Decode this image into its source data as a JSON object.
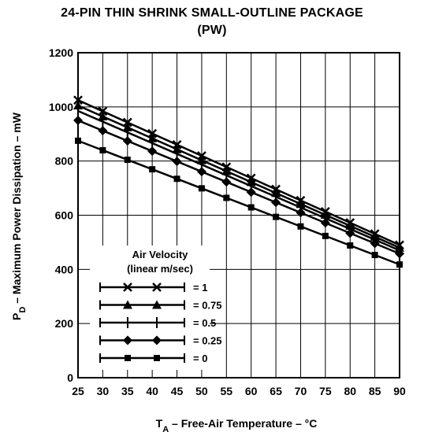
{
  "title_line1": "24-PIN THIN SHRINK SMALL-OUTLINE PACKAGE",
  "title_line2": "(PW)",
  "chart_data": {
    "type": "line",
    "title": "24-PIN THIN SHRINK SMALL-OUTLINE PACKAGE (PW)",
    "xlabel": "TA – Free-Air Temperature – °C",
    "xlabel_main": "T",
    "xlabel_sub": "A",
    "xlabel_rest": " – Free-Air Temperature – °C",
    "ylabel": "PD – Maximum Power Dissipation – mW",
    "ylabel_main": "P",
    "ylabel_sub": "D",
    "ylabel_rest": " – Maximum Power Dissipation – mW",
    "xlim": [
      25,
      90
    ],
    "ylim": [
      0,
      1200
    ],
    "x_ticks": [
      25,
      30,
      35,
      40,
      45,
      50,
      55,
      60,
      65,
      70,
      75,
      80,
      85,
      90
    ],
    "y_ticks": [
      0,
      200,
      400,
      600,
      800,
      1000,
      1200
    ],
    "grid": true,
    "legend_title_line1": "Air Velocity",
    "legend_title_line2": "(linear m/sec)",
    "legend_placement": "bottom-left",
    "series": [
      {
        "name": "= 1",
        "marker": "x",
        "x": [
          25,
          90
        ],
        "y": [
          1025,
          490
        ]
      },
      {
        "name": "= 0.75",
        "marker": "triangle",
        "x": [
          25,
          90
        ],
        "y": [
          1005,
          480
        ]
      },
      {
        "name": "= 0.5",
        "marker": "plus",
        "x": [
          25,
          90
        ],
        "y": [
          985,
          470
        ]
      },
      {
        "name": "= 0.25",
        "marker": "diamond",
        "x": [
          25,
          90
        ],
        "y": [
          950,
          458
        ]
      },
      {
        "name": "= 0",
        "marker": "square",
        "x": [
          25,
          90
        ],
        "y": [
          875,
          418
        ]
      }
    ]
  }
}
